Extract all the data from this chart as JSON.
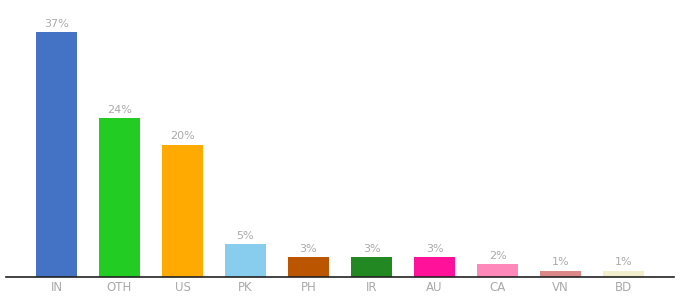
{
  "categories": [
    "IN",
    "OTH",
    "US",
    "PK",
    "PH",
    "IR",
    "AU",
    "CA",
    "VN",
    "BD"
  ],
  "values": [
    37,
    24,
    20,
    5,
    3,
    3,
    3,
    2,
    1,
    1
  ],
  "bar_colors": [
    "#4472c4",
    "#22cc22",
    "#ffaa00",
    "#88ccee",
    "#bb5500",
    "#228822",
    "#ff1199",
    "#ff88bb",
    "#dd8888",
    "#f0eecc"
  ],
  "ylim": [
    0,
    41
  ],
  "label_color": "#aaaaaa",
  "tick_color": "#aaaaaa",
  "axis_line_color": "#222222",
  "background_color": "#ffffff"
}
